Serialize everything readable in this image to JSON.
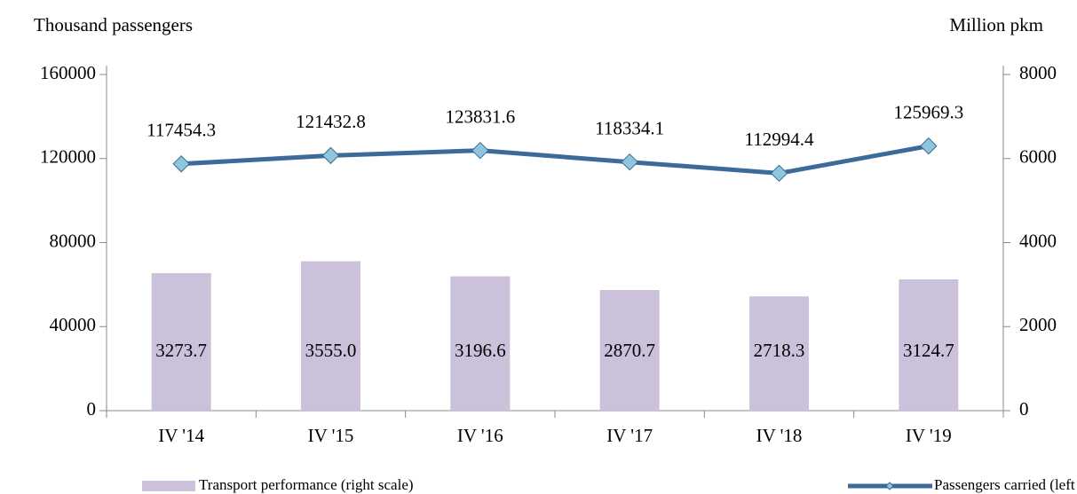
{
  "chart_data": {
    "type": "bar+line",
    "y_label": "Thousand passengers",
    "y2_label": "Million pkm",
    "categories": [
      "IV '14",
      "IV '15",
      "IV '16",
      "IV '17",
      "IV '18",
      "IV '19"
    ],
    "series": [
      {
        "name": "Transport performance (right scale)",
        "type": "bar",
        "axis": "y2",
        "color": "#ccc1da",
        "values": [
          3273.7,
          3555.0,
          3196.6,
          2870.7,
          2718.3,
          3124.7
        ],
        "value_labels": [
          "3273.7",
          "3555.0",
          "3196.6",
          "2870.7",
          "2718.3",
          "3124.7"
        ]
      },
      {
        "name": "Passengers carried (left scale)",
        "type": "line",
        "axis": "y",
        "color": "#3c6a99",
        "marker_color": "#8fc6de",
        "values": [
          117454.3,
          121432.8,
          123831.6,
          118334.1,
          112994.4,
          125969.3
        ]
      }
    ],
    "ylim": [
      0,
      160000
    ],
    "yticks": [
      0,
      40000,
      80000,
      120000,
      160000
    ],
    "y2lim": [
      0,
      8000
    ],
    "y2ticks": [
      0,
      2000,
      4000,
      6000,
      8000
    ],
    "legend": "bottom"
  }
}
